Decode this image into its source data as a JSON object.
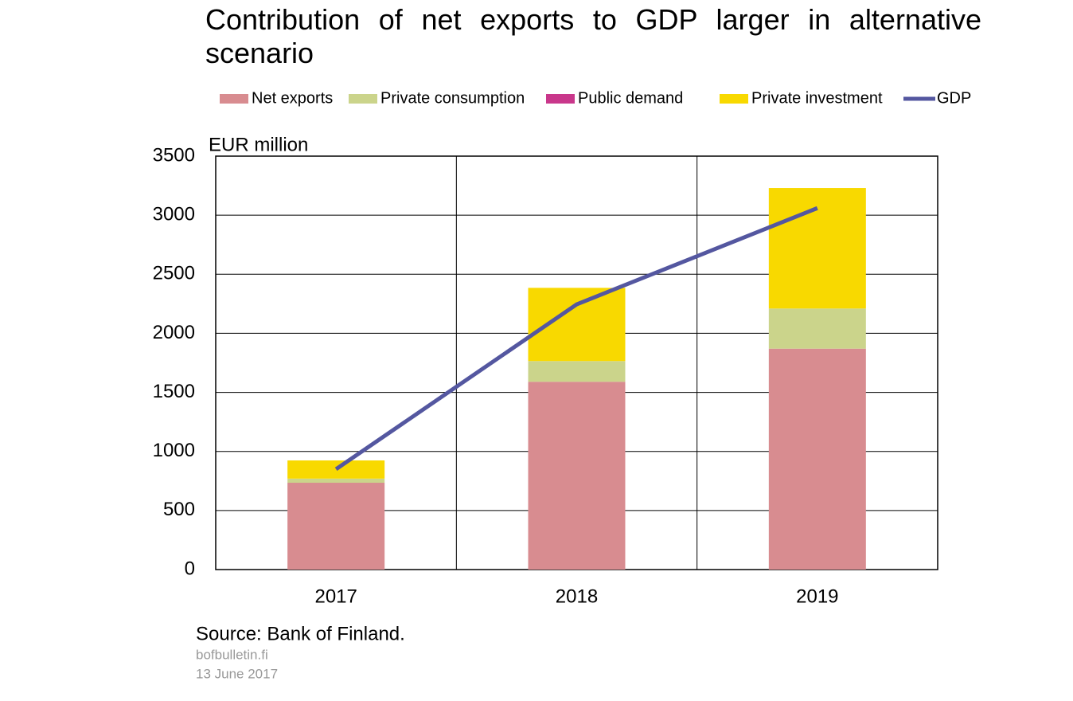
{
  "chart_data": {
    "type": "bar",
    "stacked": true,
    "title": "Contribution of net exports to GDP larger in alternative scenario",
    "y_label": "EUR million",
    "categories": [
      "2017",
      "2018",
      "2019"
    ],
    "series": [
      {
        "name": "Net exports",
        "color": "#d88c90",
        "values": [
          735,
          1590,
          1870
        ]
      },
      {
        "name": "Private consumption",
        "color": "#cbd48b",
        "values": [
          35,
          175,
          340
        ]
      },
      {
        "name": "Public demand",
        "color": "#c9378b",
        "values": [
          0,
          0,
          0
        ]
      },
      {
        "name": "Private investment",
        "color": "#f8d900",
        "values": [
          154,
          620,
          1020
        ]
      },
      {
        "name": "GDP",
        "color": "#5457a0",
        "type": "line",
        "values": [
          850,
          2245,
          3060
        ]
      }
    ],
    "ylim": [
      0,
      3500
    ],
    "yticks": [
      0,
      500,
      1000,
      1500,
      2000,
      2500,
      3000,
      3500
    ],
    "grid": true,
    "source": "Source: Bank of Finland.",
    "site": "bofbulletin.fi",
    "date": "13 June 2017"
  }
}
